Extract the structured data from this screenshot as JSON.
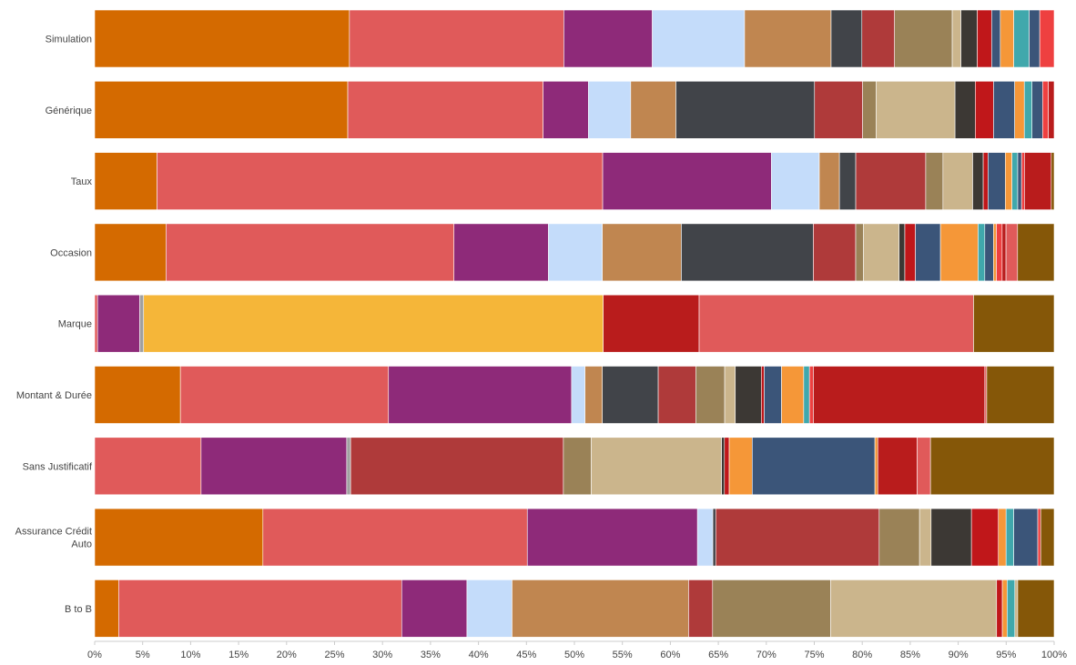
{
  "chart_data": {
    "type": "bar",
    "orientation": "horizontal",
    "stacked": "percent",
    "categories": [
      [
        "Simulation"
      ],
      [
        "Générique"
      ],
      [
        "Taux"
      ],
      [
        "Occasion"
      ],
      [
        "Marque"
      ],
      [
        "Montant & Durée"
      ],
      [
        "Sans Justificatif"
      ],
      [
        "Assurance Crédit",
        "Auto"
      ],
      [
        "B to B"
      ]
    ],
    "x_ticks": [
      "0%",
      "5%",
      "10%",
      "15%",
      "20%",
      "25%",
      "30%",
      "35%",
      "40%",
      "45%",
      "50%",
      "55%",
      "60%",
      "65%",
      "70%",
      "75%",
      "80%",
      "85%",
      "90%",
      "95%",
      "100%"
    ],
    "xlim": [
      0,
      100
    ],
    "grid": false,
    "legend": "none",
    "colors": [
      "#d46a00",
      "#e05a5a",
      "#8e2a79",
      "#c4dcfa",
      "#c08650",
      "#414449",
      "#af3a3a",
      "#9a8257",
      "#cbb58c",
      "#3c3834",
      "#c0171a",
      "#3b5579",
      "#f59738",
      "#40a8ac",
      "#ee4040",
      "#f5b639",
      "#b91c1c",
      "#855708",
      "#a0a0a0"
    ],
    "bars": [
      {
        "category": "Simulation",
        "segments": [
          {
            "color": "#d46a00",
            "value": 26.5
          },
          {
            "color": "#e05a5a",
            "value": 22.3
          },
          {
            "color": "#8e2a79",
            "value": 9.2
          },
          {
            "color": "#c4dcfa",
            "value": 9.6
          },
          {
            "color": "#c08650",
            "value": 9.0
          },
          {
            "color": "#414449",
            "value": 3.2
          },
          {
            "color": "#af3a3a",
            "value": 3.4
          },
          {
            "color": "#9a8257",
            "value": 6.0
          },
          {
            "color": "#cbb58c",
            "value": 0.9
          },
          {
            "color": "#3c3834",
            "value": 1.7
          },
          {
            "color": "#c0171a",
            "value": 1.5
          },
          {
            "color": "#3b5579",
            "value": 0.9
          },
          {
            "color": "#f59738",
            "value": 1.4
          },
          {
            "color": "#40a8ac",
            "value": 1.6
          },
          {
            "color": "#3b5579",
            "value": 1.1
          },
          {
            "color": "#ee4040",
            "value": 1.5
          }
        ]
      },
      {
        "category": "Générique",
        "segments": [
          {
            "color": "#d46a00",
            "value": 26.3
          },
          {
            "color": "#e05a5a",
            "value": 20.3
          },
          {
            "color": "#8e2a79",
            "value": 4.7
          },
          {
            "color": "#c4dcfa",
            "value": 4.4
          },
          {
            "color": "#c08650",
            "value": 4.7
          },
          {
            "color": "#414449",
            "value": 14.4
          },
          {
            "color": "#af3a3a",
            "value": 5.0
          },
          {
            "color": "#9a8257",
            "value": 1.4
          },
          {
            "color": "#cbb58c",
            "value": 8.2
          },
          {
            "color": "#3c3834",
            "value": 2.1
          },
          {
            "color": "#c0171a",
            "value": 1.9
          },
          {
            "color": "#3b5579",
            "value": 2.2
          },
          {
            "color": "#f59738",
            "value": 1.0
          },
          {
            "color": "#40a8ac",
            "value": 0.8
          },
          {
            "color": "#3b5579",
            "value": 1.1
          },
          {
            "color": "#ee4040",
            "value": 0.6
          },
          {
            "color": "#b91c1c",
            "value": 0.6
          }
        ]
      },
      {
        "category": "Taux",
        "segments": [
          {
            "color": "#d46a00",
            "value": 6.5
          },
          {
            "color": "#e05a5a",
            "value": 46.5
          },
          {
            "color": "#8e2a79",
            "value": 17.6
          },
          {
            "color": "#c4dcfa",
            "value": 5.0
          },
          {
            "color": "#c08650",
            "value": 2.1
          },
          {
            "color": "#414449",
            "value": 1.7
          },
          {
            "color": "#af3a3a",
            "value": 7.3
          },
          {
            "color": "#9a8257",
            "value": 1.8
          },
          {
            "color": "#cbb58c",
            "value": 3.1
          },
          {
            "color": "#3c3834",
            "value": 1.1
          },
          {
            "color": "#c0171a",
            "value": 0.5
          },
          {
            "color": "#3b5579",
            "value": 1.8
          },
          {
            "color": "#f59738",
            "value": 0.7
          },
          {
            "color": "#40a8ac",
            "value": 0.6
          },
          {
            "color": "#3b5579",
            "value": 0.4
          },
          {
            "color": "#ee4040",
            "value": 0.3
          },
          {
            "color": "#b91c1c",
            "value": 2.8
          },
          {
            "color": "#855708",
            "value": 0.3
          }
        ]
      },
      {
        "category": "Occasion",
        "segments": [
          {
            "color": "#d46a00",
            "value": 7.4
          },
          {
            "color": "#e05a5a",
            "value": 29.9
          },
          {
            "color": "#8e2a79",
            "value": 9.8
          },
          {
            "color": "#c4dcfa",
            "value": 5.6
          },
          {
            "color": "#c08650",
            "value": 8.2
          },
          {
            "color": "#414449",
            "value": 13.7
          },
          {
            "color": "#af3a3a",
            "value": 4.4
          },
          {
            "color": "#9a8257",
            "value": 0.8
          },
          {
            "color": "#cbb58c",
            "value": 3.7
          },
          {
            "color": "#3c3834",
            "value": 0.6
          },
          {
            "color": "#c0171a",
            "value": 1.1
          },
          {
            "color": "#3b5579",
            "value": 2.6
          },
          {
            "color": "#f59738",
            "value": 3.9
          },
          {
            "color": "#40a8ac",
            "value": 0.7
          },
          {
            "color": "#3b5579",
            "value": 0.9
          },
          {
            "color": "#f59738",
            "value": 0.3
          },
          {
            "color": "#ee4040",
            "value": 0.6
          },
          {
            "color": "#b91c1c",
            "value": 0.4
          },
          {
            "color": "#e05a5a",
            "value": 1.2
          },
          {
            "color": "#855708",
            "value": 3.8
          }
        ]
      },
      {
        "category": "Marque",
        "segments": [
          {
            "color": "#e05a5a",
            "value": 0.3
          },
          {
            "color": "#8e2a79",
            "value": 4.4
          },
          {
            "color": "#a0a0a0",
            "value": 0.4
          },
          {
            "color": "#f5b639",
            "value": 47.9
          },
          {
            "color": "#b91c1c",
            "value": 10.0
          },
          {
            "color": "#e05a5a",
            "value": 28.6
          },
          {
            "color": "#855708",
            "value": 8.4
          }
        ]
      },
      {
        "category": "Montant & Durée",
        "segments": [
          {
            "color": "#d46a00",
            "value": 8.9
          },
          {
            "color": "#e05a5a",
            "value": 21.6
          },
          {
            "color": "#8e2a79",
            "value": 19.0
          },
          {
            "color": "#c4dcfa",
            "value": 1.4
          },
          {
            "color": "#c08650",
            "value": 1.8
          },
          {
            "color": "#414449",
            "value": 5.8
          },
          {
            "color": "#af3a3a",
            "value": 3.9
          },
          {
            "color": "#9a8257",
            "value": 3.0
          },
          {
            "color": "#cbb58c",
            "value": 1.1
          },
          {
            "color": "#3c3834",
            "value": 2.7
          },
          {
            "color": "#c0171a",
            "value": 0.3
          },
          {
            "color": "#3b5579",
            "value": 1.8
          },
          {
            "color": "#f59738",
            "value": 2.3
          },
          {
            "color": "#40a8ac",
            "value": 0.6
          },
          {
            "color": "#ee4040",
            "value": 0.4
          },
          {
            "color": "#b91c1c",
            "value": 17.8
          },
          {
            "color": "#e05a5a",
            "value": 0.2
          },
          {
            "color": "#855708",
            "value": 7.0
          }
        ]
      },
      {
        "category": "Sans Justificatif",
        "segments": [
          {
            "color": "#e05a5a",
            "value": 11.1
          },
          {
            "color": "#8e2a79",
            "value": 15.2
          },
          {
            "color": "#a0a0a0",
            "value": 0.4
          },
          {
            "color": "#af3a3a",
            "value": 22.2
          },
          {
            "color": "#9a8257",
            "value": 2.9
          },
          {
            "color": "#cbb58c",
            "value": 13.6
          },
          {
            "color": "#3c3834",
            "value": 0.3
          },
          {
            "color": "#c0171a",
            "value": 0.5
          },
          {
            "color": "#f59738",
            "value": 2.4
          },
          {
            "color": "#3b5579",
            "value": 12.8
          },
          {
            "color": "#f59738",
            "value": 0.3
          },
          {
            "color": "#b91c1c",
            "value": 4.1
          },
          {
            "color": "#e05a5a",
            "value": 1.4
          },
          {
            "color": "#855708",
            "value": 12.9
          }
        ]
      },
      {
        "category": "Assurance Crédit Auto",
        "segments": [
          {
            "color": "#d46a00",
            "value": 17.5
          },
          {
            "color": "#e05a5a",
            "value": 27.5
          },
          {
            "color": "#8e2a79",
            "value": 17.7
          },
          {
            "color": "#c4dcfa",
            "value": 1.6
          },
          {
            "color": "#414449",
            "value": 0.3
          },
          {
            "color": "#af3a3a",
            "value": 17.0
          },
          {
            "color": "#9a8257",
            "value": 4.2
          },
          {
            "color": "#cbb58c",
            "value": 1.2
          },
          {
            "color": "#3c3834",
            "value": 4.2
          },
          {
            "color": "#c0171a",
            "value": 2.8
          },
          {
            "color": "#f59738",
            "value": 0.8
          },
          {
            "color": "#40a8ac",
            "value": 0.8
          },
          {
            "color": "#3b5579",
            "value": 2.5
          },
          {
            "color": "#ee4040",
            "value": 0.3
          },
          {
            "color": "#855708",
            "value": 1.4
          }
        ]
      },
      {
        "category": "B to B",
        "segments": [
          {
            "color": "#d46a00",
            "value": 2.5
          },
          {
            "color": "#e05a5a",
            "value": 29.5
          },
          {
            "color": "#8e2a79",
            "value": 6.8
          },
          {
            "color": "#c4dcfa",
            "value": 4.7
          },
          {
            "color": "#c08650",
            "value": 18.4
          },
          {
            "color": "#af3a3a",
            "value": 2.5
          },
          {
            "color": "#9a8257",
            "value": 12.3
          },
          {
            "color": "#cbb58c",
            "value": 17.3
          },
          {
            "color": "#c0171a",
            "value": 0.6
          },
          {
            "color": "#f59738",
            "value": 0.5
          },
          {
            "color": "#40a8ac",
            "value": 0.8
          },
          {
            "color": "#cbb58c",
            "value": 0.3
          },
          {
            "color": "#855708",
            "value": 3.8
          }
        ]
      }
    ]
  }
}
